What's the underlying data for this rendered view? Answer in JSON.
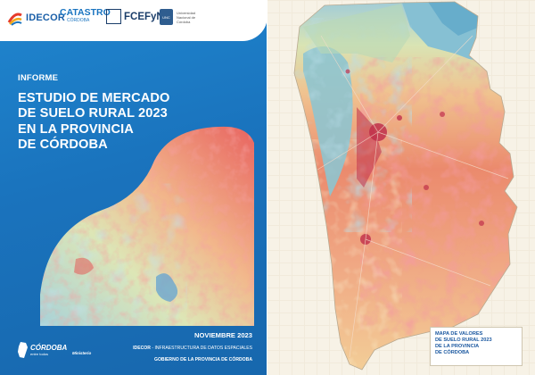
{
  "cover": {
    "logos": {
      "idecor": "IDECOR",
      "catastro": "CATASTRO",
      "catastro_sub": "CÓRDOBA",
      "fcefyn": "FCEFyN",
      "unc_badge": "UNC",
      "unc_text": "Universidad Nacional de Córdoba"
    },
    "label": "INFORME",
    "title_lines": [
      "ESTUDIO DE MERCADO",
      "DE SUELO RURAL 2023",
      "EN LA PROVINCIA",
      "DE CÓRDOBA"
    ],
    "date": "NOVIEMBRE 2023",
    "org_line_1_bold": "IDECOR",
    "org_line_1_rest": " - INFRAESTRUCTURA DE DATOS ESPACIALES",
    "org_line_2": "GOBIERNO DE LA PROVINCIA DE CÓRDOBA",
    "footer_logo_main": "CÓRDOBA",
    "footer_logo_sub": "entre todos",
    "footer_logo_extra": "Ministerio"
  },
  "map_page": {
    "caption_lines": [
      "MAPA DE VALORES",
      "DE SUELO RURAL 2023",
      "DE LA PROVINCIA",
      "DE CÓRDOBA"
    ]
  },
  "colors": {
    "cover_blue": "#1a73bd",
    "value_high": "#e5585a",
    "value_mid_high": "#ef8a6a",
    "value_mid": "#f3c88f",
    "value_low": "#e7e9b2",
    "value_lower": "#b8dbbb",
    "value_lowest": "#7fbcd0",
    "urban": "#c0304b"
  }
}
